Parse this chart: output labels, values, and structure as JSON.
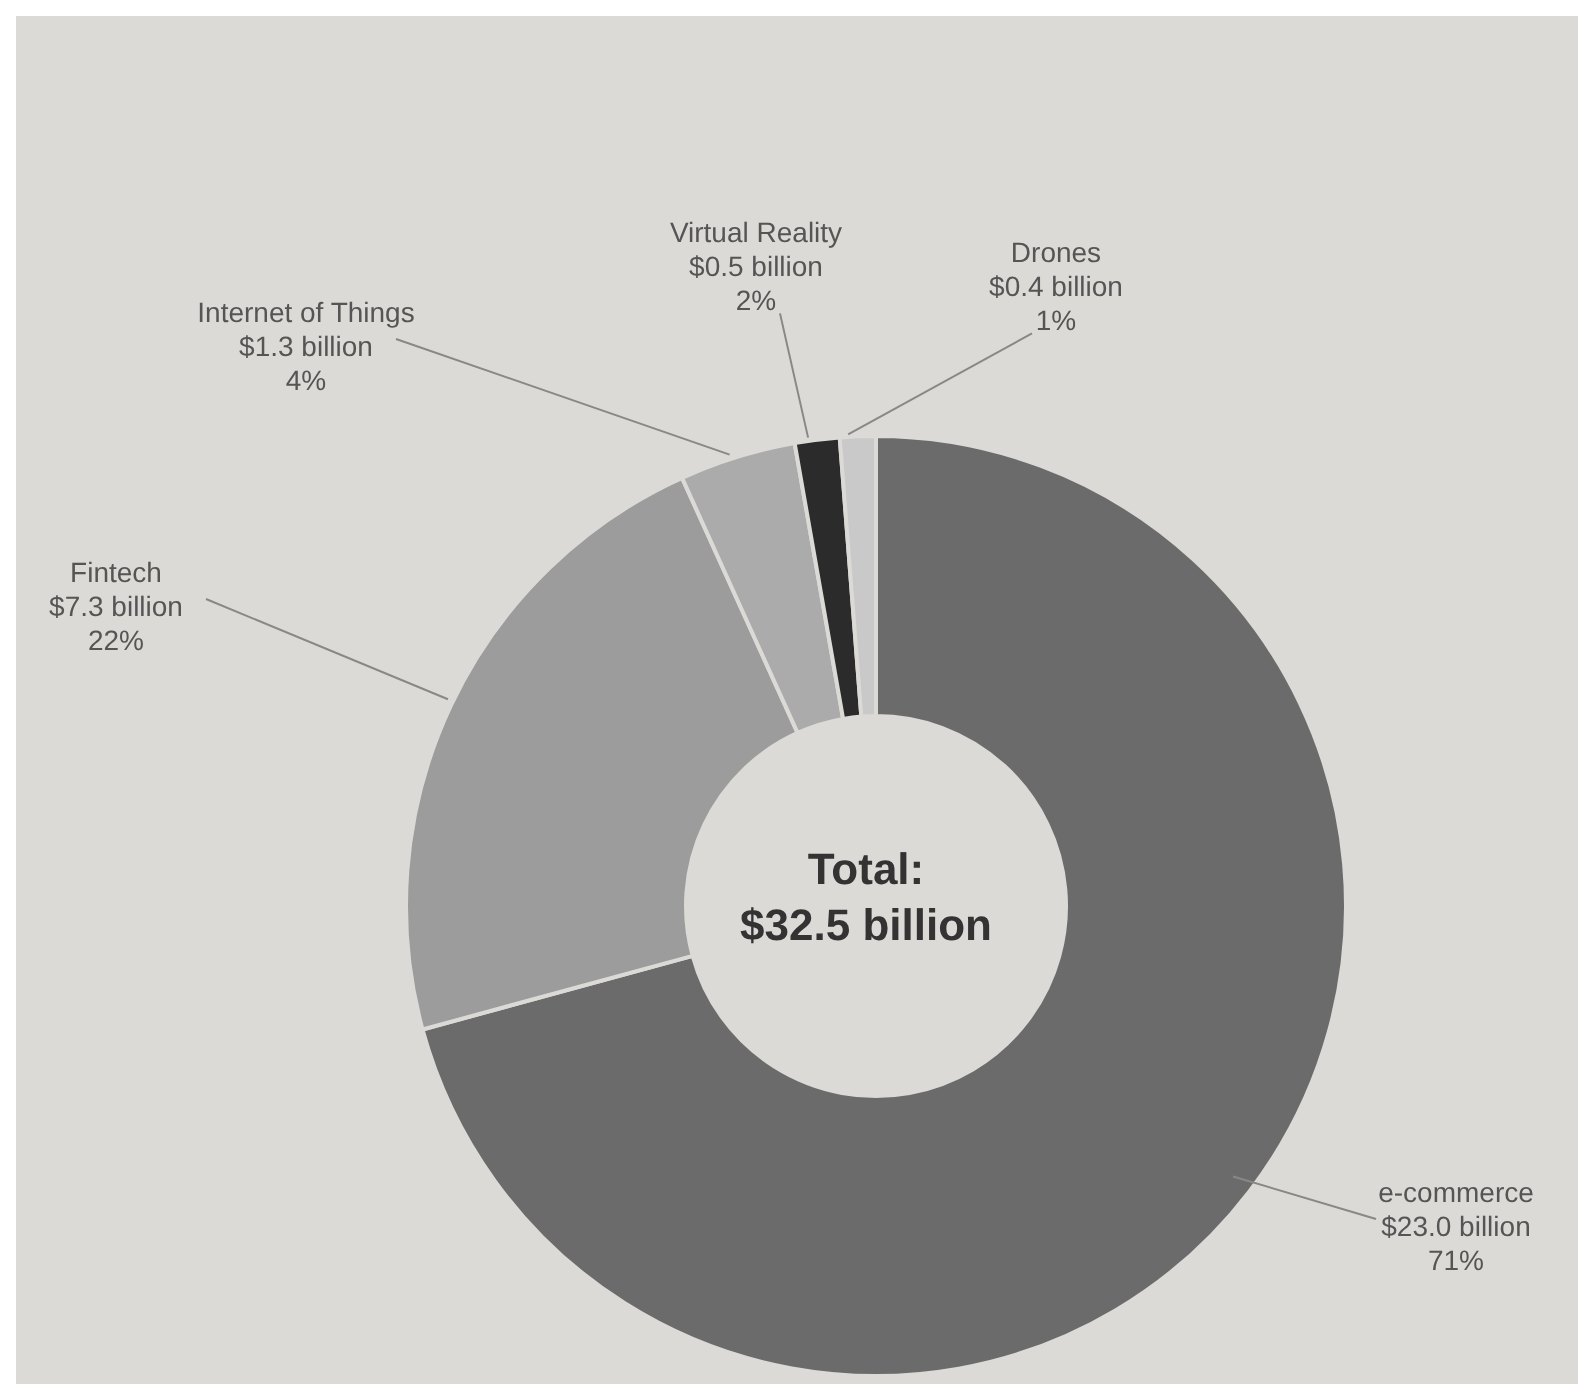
{
  "chart_data": {
    "type": "donut",
    "categories": [
      "e-commerce",
      "Fintech",
      "Internet of Things",
      "Virtual Reality",
      "Drones"
    ],
    "values": [
      23.0,
      7.3,
      1.3,
      0.5,
      0.4
    ],
    "colors": [
      "#6b6b6b",
      "#9c9c9c",
      "#ababab",
      "#2b2b2b",
      "#c9c9c9"
    ],
    "value_labels": [
      "$23.0 billion",
      "$7.3 billion",
      "$1.3 billion",
      "$0.5 billion",
      "$0.4 billion"
    ],
    "annotations": [
      "Total:",
      "$32.5 billion",
      {
        "text": "71%",
        "x": "e-commerce"
      },
      {
        "text": "22%",
        "x": "Fintech"
      },
      {
        "text": "4%",
        "x": "Internet of Things"
      },
      {
        "text": "2%",
        "x": "Virtual Reality"
      },
      {
        "text": "1%",
        "x": "Drones"
      }
    ]
  }
}
